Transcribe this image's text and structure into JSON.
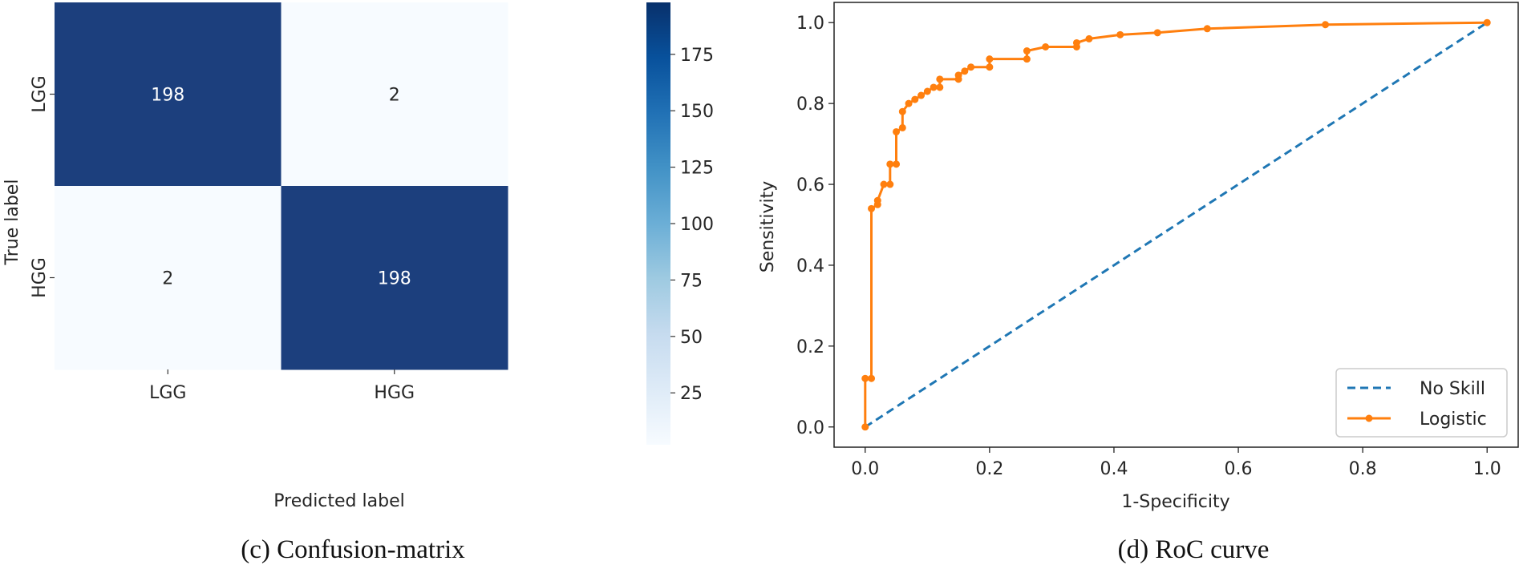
{
  "chart_data": [
    {
      "type": "heatmap",
      "caption": "(c) Confusion-matrix",
      "xlabel": "Predicted label",
      "ylabel": "True label",
      "x_categories": [
        "LGG",
        "HGG"
      ],
      "y_categories": [
        "LGG",
        "HGG"
      ],
      "matrix": [
        [
          198,
          2
        ],
        [
          2,
          198
        ]
      ],
      "colorbar": {
        "ticks": [
          25,
          50,
          75,
          100,
          125,
          150,
          175
        ],
        "range": [
          2,
          198
        ]
      },
      "colormap": [
        "#f7fbff",
        "#deebf7",
        "#c6dbef",
        "#9ecae1",
        "#6baed6",
        "#4292c6",
        "#2171b5",
        "#08519c",
        "#08306b"
      ],
      "cell_text_colors": {
        "dark": "#ffffff",
        "light": "#262626"
      },
      "matrix_dark_color": "#1c3f7d"
    },
    {
      "type": "line",
      "caption": "(d) RoC curve",
      "xlabel": "1-Specificity",
      "ylabel": "Sensitivity",
      "xlim": [
        -0.05,
        1.05
      ],
      "ylim": [
        -0.05,
        1.05
      ],
      "xticks": [
        "0.0",
        "0.2",
        "0.4",
        "0.6",
        "0.8",
        "1.0"
      ],
      "yticks": [
        "0.0",
        "0.2",
        "0.4",
        "0.6",
        "0.8",
        "1.0"
      ],
      "legend_position": "lower-right",
      "grid": false,
      "series": [
        {
          "name": "No Skill",
          "color": "#1f77b4",
          "style": "dashed",
          "x": [
            0,
            1
          ],
          "y": [
            0,
            1
          ]
        },
        {
          "name": "Logistic",
          "color": "#ff7f0e",
          "style": "solid-markers",
          "x": [
            0,
            0,
            0.01,
            0.01,
            0.02,
            0.02,
            0.03,
            0.04,
            0.04,
            0.05,
            0.05,
            0.06,
            0.06,
            0.07,
            0.08,
            0.09,
            0.1,
            0.11,
            0.12,
            0.12,
            0.15,
            0.15,
            0.16,
            0.17,
            0.2,
            0.2,
            0.26,
            0.26,
            0.29,
            0.34,
            0.34,
            0.36,
            0.41,
            0.47,
            0.55,
            0.74,
            1.0
          ],
          "y": [
            0.0,
            0.12,
            0.12,
            0.54,
            0.55,
            0.56,
            0.6,
            0.6,
            0.65,
            0.65,
            0.73,
            0.74,
            0.78,
            0.8,
            0.81,
            0.82,
            0.83,
            0.84,
            0.84,
            0.86,
            0.86,
            0.87,
            0.88,
            0.89,
            0.89,
            0.91,
            0.91,
            0.93,
            0.94,
            0.94,
            0.95,
            0.96,
            0.97,
            0.975,
            0.985,
            0.995,
            1.0
          ]
        }
      ]
    }
  ]
}
